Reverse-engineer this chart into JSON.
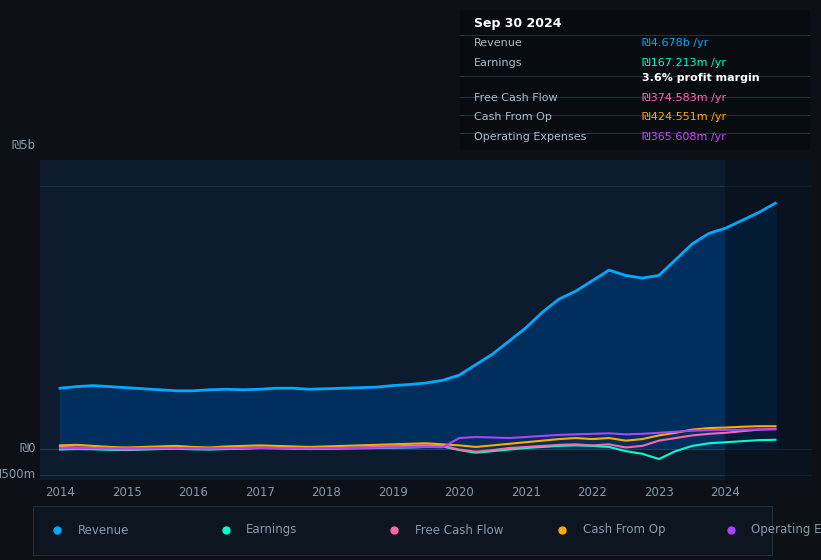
{
  "bg_color": "#0d1117",
  "plot_bg_color": "#0d1b2e",
  "grid_color": "#1e3050",
  "text_color": "#8899aa",
  "ylabel_5b": "₪5b",
  "ylabel_0": "₪0",
  "ylabel_neg500m": "-₪500m",
  "legend": [
    {
      "label": "Revenue",
      "color": "#00aaff"
    },
    {
      "label": "Earnings",
      "color": "#00ffcc"
    },
    {
      "label": "Free Cash Flow",
      "color": "#ff66aa"
    },
    {
      "label": "Cash From Op",
      "color": "#ffaa00"
    },
    {
      "label": "Operating Expenses",
      "color": "#aa44ff"
    }
  ],
  "info_box": {
    "date": "Sep 30 2024",
    "rows": [
      {
        "label": "Revenue",
        "value": "₪4.678b /yr",
        "value_color": "#00aaff"
      },
      {
        "label": "Earnings",
        "value": "₪167.213m /yr",
        "value_color": "#00ffcc"
      },
      {
        "label": "",
        "value": "3.6% profit margin",
        "value_color": "#ffffff",
        "bold": true
      },
      {
        "label": "Free Cash Flow",
        "value": "₪374.583m /yr",
        "value_color": "#ff66aa"
      },
      {
        "label": "Cash From Op",
        "value": "₪424.551m /yr",
        "value_color": "#ffaa00"
      },
      {
        "label": "Operating Expenses",
        "value": "₪365.608m /yr",
        "value_color": "#cc44ff"
      }
    ]
  },
  "revenue": {
    "x": [
      2014.0,
      2014.25,
      2014.5,
      2014.75,
      2015.0,
      2015.25,
      2015.5,
      2015.75,
      2016.0,
      2016.25,
      2016.5,
      2016.75,
      2017.0,
      2017.25,
      2017.5,
      2017.75,
      2018.0,
      2018.25,
      2018.5,
      2018.75,
      2019.0,
      2019.25,
      2019.5,
      2019.75,
      2020.0,
      2020.25,
      2020.5,
      2020.75,
      2021.0,
      2021.25,
      2021.5,
      2021.75,
      2022.0,
      2022.25,
      2022.5,
      2022.75,
      2023.0,
      2023.25,
      2023.5,
      2023.75,
      2024.0,
      2024.25,
      2024.5,
      2024.75
    ],
    "y": [
      1150000000.0,
      1180000000.0,
      1200000000.0,
      1180000000.0,
      1160000000.0,
      1140000000.0,
      1120000000.0,
      1100000000.0,
      1100000000.0,
      1120000000.0,
      1130000000.0,
      1120000000.0,
      1130000000.0,
      1150000000.0,
      1150000000.0,
      1130000000.0,
      1140000000.0,
      1150000000.0,
      1160000000.0,
      1170000000.0,
      1200000000.0,
      1220000000.0,
      1250000000.0,
      1300000000.0,
      1400000000.0,
      1600000000.0,
      1800000000.0,
      2050000000.0,
      2300000000.0,
      2600000000.0,
      2850000000.0,
      3000000000.0,
      3200000000.0,
      3400000000.0,
      3300000000.0,
      3250000000.0,
      3300000000.0,
      3600000000.0,
      3900000000.0,
      4100000000.0,
      4200000000.0,
      4350000000.0,
      4500000000.0,
      4678000000.0
    ],
    "color": "#00aaff",
    "fill_color": "#003366",
    "linewidth": 2.0
  },
  "earnings": {
    "x": [
      2014.0,
      2014.25,
      2014.5,
      2014.75,
      2015.0,
      2015.25,
      2015.5,
      2015.75,
      2016.0,
      2016.25,
      2016.5,
      2016.75,
      2017.0,
      2017.25,
      2017.5,
      2017.75,
      2018.0,
      2018.25,
      2018.5,
      2018.75,
      2019.0,
      2019.25,
      2019.5,
      2019.75,
      2020.0,
      2020.25,
      2020.5,
      2020.75,
      2021.0,
      2021.25,
      2021.5,
      2021.75,
      2022.0,
      2022.25,
      2022.5,
      2022.75,
      2023.0,
      2023.25,
      2023.5,
      2023.75,
      2024.0,
      2024.25,
      2024.5,
      2024.75
    ],
    "y": [
      -20000000.0,
      -10000000.0,
      -15000000.0,
      -25000000.0,
      -30000000.0,
      -20000000.0,
      -10000000.0,
      -5000000.0,
      -15000000.0,
      -20000000.0,
      -10000000.0,
      -5000000.0,
      10000000.0,
      5000000.0,
      -5000000.0,
      -10000000.0,
      -5000000.0,
      0,
      5000000.0,
      10000000.0,
      15000000.0,
      20000000.0,
      30000000.0,
      40000000.0,
      -30000000.0,
      -80000000.0,
      -50000000.0,
      -20000000.0,
      10000000.0,
      30000000.0,
      50000000.0,
      60000000.0,
      50000000.0,
      30000000.0,
      -50000000.0,
      -100000000.0,
      -200000000.0,
      -50000000.0,
      50000000.0,
      100000000.0,
      120000000.0,
      140000000.0,
      160000000.0,
      167213000.0
    ],
    "color": "#00ffcc",
    "linewidth": 1.5
  },
  "free_cash_flow": {
    "x": [
      2014.0,
      2014.25,
      2014.5,
      2014.75,
      2015.0,
      2015.25,
      2015.5,
      2015.75,
      2016.0,
      2016.25,
      2016.5,
      2016.75,
      2017.0,
      2017.25,
      2017.5,
      2017.75,
      2018.0,
      2018.25,
      2018.5,
      2018.75,
      2019.0,
      2019.25,
      2019.5,
      2019.75,
      2020.0,
      2020.25,
      2020.5,
      2020.75,
      2021.0,
      2021.25,
      2021.5,
      2021.75,
      2022.0,
      2022.25,
      2022.5,
      2022.75,
      2023.0,
      2023.25,
      2023.5,
      2023.75,
      2024.0,
      2024.25,
      2024.5,
      2024.75
    ],
    "y": [
      30000000.0,
      20000000.0,
      10000000.0,
      -10000000.0,
      -20000000.0,
      -10000000.0,
      0,
      10000000.0,
      -5000000.0,
      -10000000.0,
      5000000.0,
      10000000.0,
      20000000.0,
      10000000.0,
      5000000.0,
      -5000000.0,
      0,
      10000000.0,
      20000000.0,
      30000000.0,
      40000000.0,
      50000000.0,
      60000000.0,
      50000000.0,
      -20000000.0,
      -60000000.0,
      -30000000.0,
      10000000.0,
      30000000.0,
      50000000.0,
      70000000.0,
      80000000.0,
      60000000.0,
      80000000.0,
      20000000.0,
      50000000.0,
      150000000.0,
      200000000.0,
      250000000.0,
      280000000.0,
      300000000.0,
      330000000.0,
      360000000.0,
      374583000.0
    ],
    "color": "#ff66aa",
    "linewidth": 1.5
  },
  "cash_from_op": {
    "x": [
      2014.0,
      2014.25,
      2014.5,
      2014.75,
      2015.0,
      2015.25,
      2015.5,
      2015.75,
      2016.0,
      2016.25,
      2016.5,
      2016.75,
      2017.0,
      2017.25,
      2017.5,
      2017.75,
      2018.0,
      2018.25,
      2018.5,
      2018.75,
      2019.0,
      2019.25,
      2019.5,
      2019.75,
      2020.0,
      2020.25,
      2020.5,
      2020.75,
      2021.0,
      2021.25,
      2021.5,
      2021.75,
      2022.0,
      2022.25,
      2022.5,
      2022.75,
      2023.0,
      2023.25,
      2023.5,
      2023.75,
      2024.0,
      2024.25,
      2024.5,
      2024.75
    ],
    "y": [
      60000000.0,
      70000000.0,
      50000000.0,
      30000000.0,
      20000000.0,
      30000000.0,
      40000000.0,
      50000000.0,
      30000000.0,
      20000000.0,
      40000000.0,
      50000000.0,
      60000000.0,
      50000000.0,
      40000000.0,
      30000000.0,
      40000000.0,
      50000000.0,
      60000000.0,
      70000000.0,
      80000000.0,
      90000000.0,
      100000000.0,
      80000000.0,
      60000000.0,
      30000000.0,
      60000000.0,
      90000000.0,
      120000000.0,
      150000000.0,
      180000000.0,
      200000000.0,
      180000000.0,
      200000000.0,
      150000000.0,
      180000000.0,
      250000000.0,
      300000000.0,
      360000000.0,
      390000000.0,
      400000000.0,
      415000000.0,
      425000000.0,
      424551000.0
    ],
    "color": "#ffaa00",
    "linewidth": 1.5
  },
  "operating_expenses": {
    "x": [
      2014.0,
      2014.25,
      2014.5,
      2014.75,
      2015.0,
      2015.25,
      2015.5,
      2015.75,
      2016.0,
      2016.25,
      2016.5,
      2016.75,
      2017.0,
      2017.25,
      2017.5,
      2017.75,
      2018.0,
      2018.25,
      2018.5,
      2018.75,
      2019.0,
      2019.25,
      2019.5,
      2019.75,
      2020.0,
      2020.25,
      2020.5,
      2020.75,
      2021.0,
      2021.25,
      2021.5,
      2021.75,
      2022.0,
      2022.25,
      2022.5,
      2022.75,
      2023.0,
      2023.25,
      2023.5,
      2023.75,
      2024.0,
      2024.25,
      2024.5,
      2024.75
    ],
    "y": [
      5000000.0,
      8000000.0,
      6000000.0,
      4000000.0,
      3000000.0,
      5000000.0,
      7000000.0,
      8000000.0,
      5000000.0,
      4000000.0,
      6000000.0,
      8000000.0,
      10000000.0,
      8000000.0,
      6000000.0,
      5000000.0,
      8000000.0,
      10000000.0,
      12000000.0,
      15000000.0,
      20000000.0,
      25000000.0,
      30000000.0,
      25000000.0,
      200000000.0,
      220000000.0,
      210000000.0,
      200000000.0,
      220000000.0,
      240000000.0,
      260000000.0,
      270000000.0,
      280000000.0,
      290000000.0,
      270000000.0,
      280000000.0,
      300000000.0,
      320000000.0,
      340000000.0,
      350000000.0,
      355000000.0,
      360000000.0,
      363000000.0,
      365608000.0
    ],
    "color": "#aa44ff",
    "linewidth": 1.5
  },
  "ylim": [
    -600000000.0,
    5500000000.0
  ],
  "xlim": [
    2013.7,
    2025.3
  ],
  "shaded_start": 2024.0
}
